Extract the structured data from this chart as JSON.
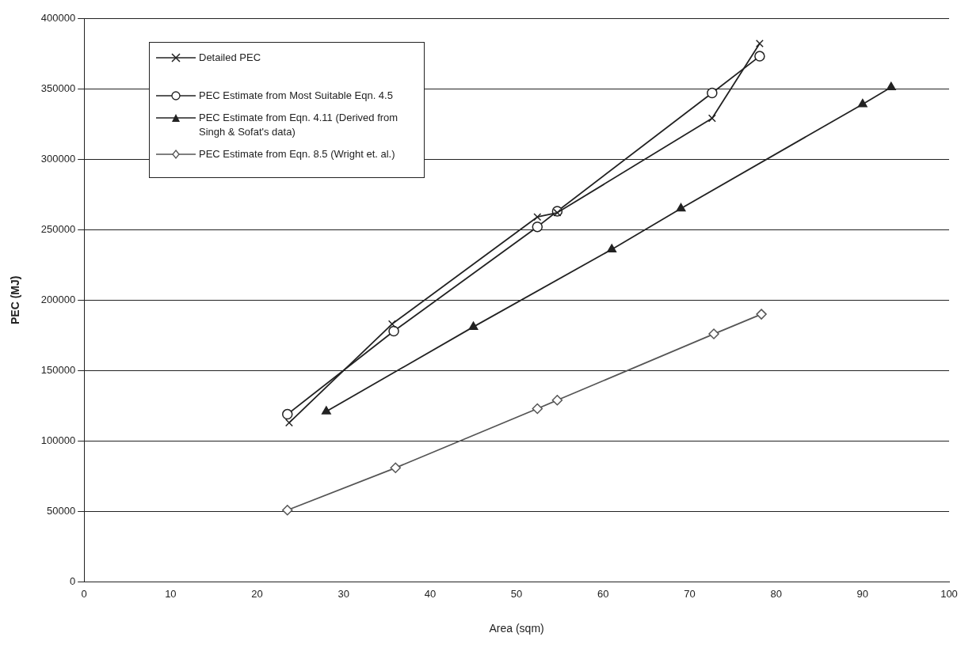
{
  "chart_data": {
    "type": "line",
    "xlabel": "Area (sqm)",
    "ylabel": "PEC (MJ)",
    "xlim": [
      0,
      100
    ],
    "xticks": [
      0,
      10,
      20,
      30,
      40,
      50,
      60,
      70,
      80,
      90,
      100
    ],
    "ylim": [
      0,
      400000
    ],
    "yticks": [
      0,
      50000,
      100000,
      150000,
      200000,
      250000,
      300000,
      350000,
      400000
    ],
    "grid": "y",
    "legend": "top left",
    "line_style": "solid",
    "series": [
      {
        "name": "Detailed PEC",
        "color": "#222222",
        "marker": "cross",
        "x": [
          23.7,
          35.6,
          52.4,
          54.7,
          72.6,
          78.1
        ],
        "values": [
          113000,
          183000,
          259000,
          262000,
          329000,
          382000
        ]
      },
      {
        "name": "PEC Estimate from Most Suitable Eqn. 4.5",
        "color": "#222222",
        "marker": "circle",
        "x": [
          23.5,
          35.8,
          52.4,
          54.7,
          72.6,
          78.1
        ],
        "values": [
          119000,
          178000,
          252000,
          263000,
          347000,
          373000
        ]
      },
      {
        "name": "PEC Estimate from Eqn. 4.11 (Derived from Singh & Sofat's data)",
        "color": "#222222",
        "marker": "triangle",
        "x": [
          28,
          45,
          61,
          69,
          90,
          93.3
        ],
        "values": [
          121000,
          181000,
          236000,
          265000,
          339000,
          351000
        ]
      },
      {
        "name": "PEC Estimate from Eqn. 8.5 (Wright et. al.)",
        "color": "#555555",
        "marker": "diamond",
        "x": [
          23.5,
          36,
          52.4,
          54.7,
          72.8,
          78.3
        ],
        "values": [
          51000,
          81000,
          123000,
          129000,
          176000,
          190000
        ]
      }
    ]
  }
}
